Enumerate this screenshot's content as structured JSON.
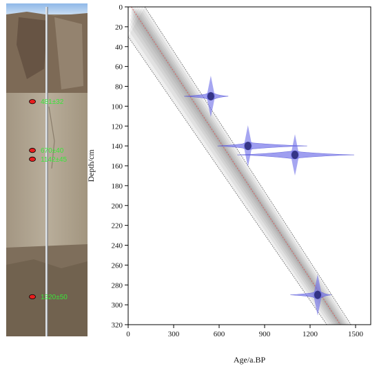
{
  "photo": {
    "samples": [
      {
        "label": "481±32",
        "depth_cm": 90
      },
      {
        "label": "670±40",
        "depth_cm": 140
      },
      {
        "label": "1142±45",
        "depth_cm": 149
      },
      {
        "label": "1320±50",
        "depth_cm": 290
      }
    ]
  },
  "chart_data": {
    "type": "line",
    "xlabel": "Age/a.BP",
    "ylabel": "Depth/cm",
    "xlim": [
      0,
      1600
    ],
    "ylim": [
      0,
      320
    ],
    "y_inverted": true,
    "x_ticks": [
      0,
      300,
      600,
      900,
      1200,
      1500
    ],
    "y_ticks": [
      0,
      20,
      40,
      60,
      80,
      100,
      120,
      140,
      160,
      180,
      200,
      220,
      240,
      260,
      280,
      300,
      320
    ],
    "age_model": {
      "median": [
        [
          20,
          0
        ],
        [
          1400,
          320
        ]
      ],
      "upper_bound": [
        [
          110,
          0
        ],
        [
          1470,
          320
        ]
      ],
      "lower_bound": [
        [
          0,
          30
        ],
        [
          1310,
          320
        ]
      ]
    },
    "date_distributions": [
      {
        "depth": 90,
        "center_age": 545,
        "min_age": 370,
        "max_age": 660
      },
      {
        "depth": 140,
        "center_age": 790,
        "min_age": 590,
        "max_age": 1180
      },
      {
        "depth": 149,
        "center_age": 1100,
        "min_age": 720,
        "max_age": 1490
      },
      {
        "depth": 290,
        "center_age": 1250,
        "min_age": 1070,
        "max_age": 1340
      }
    ],
    "colors": {
      "median": "#e05050",
      "distribution": "#6a6ae8",
      "band_dark": "#7a7a7a"
    }
  }
}
